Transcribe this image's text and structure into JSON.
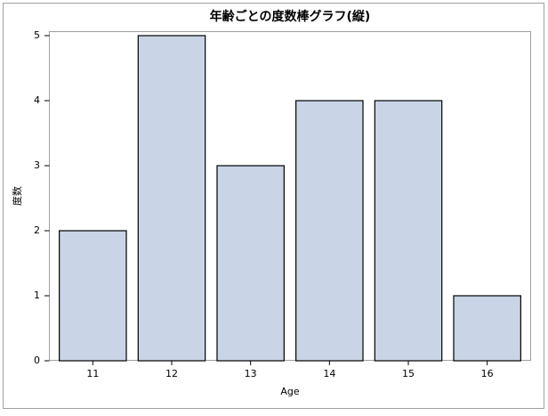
{
  "chart_data": {
    "type": "bar",
    "title": "年齢ごとの度数棒グラフ(縦)",
    "xlabel": "Age",
    "ylabel": "度数",
    "categories": [
      "11",
      "12",
      "13",
      "14",
      "15",
      "16"
    ],
    "values": [
      2,
      5,
      3,
      4,
      4,
      1
    ],
    "color": "#c9d4e6",
    "ylim": [
      0,
      5
    ],
    "yticks": [
      0,
      1,
      2,
      3,
      4,
      5
    ]
  }
}
